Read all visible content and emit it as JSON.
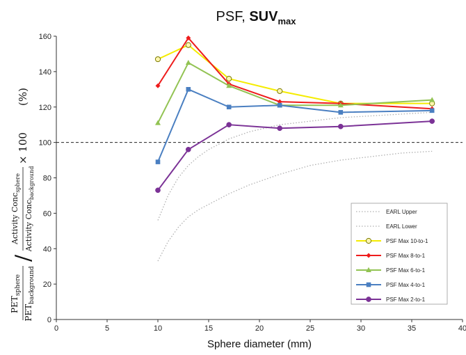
{
  "chart_data": {
    "type": "line",
    "title": "PSF, ",
    "title_bold": "SUV",
    "title_bold_sub": "max",
    "xlabel": "Sphere diameter (mm)",
    "ylabel": {
      "pet_num": "PET",
      "pet_num_sub": "sphere",
      "pet_den": "PET",
      "pet_den_sub": "background",
      "ac_num": "Activity Conc",
      "ac_num_sub": "sphere",
      "ac_den": "Activity Conc",
      "ac_den_sub": "background",
      "slash": "/",
      "times": "× 100",
      "unit": "(%)"
    },
    "xlim": [
      0,
      40
    ],
    "ylim": [
      0,
      160
    ],
    "xticks": [
      0,
      5,
      10,
      15,
      20,
      25,
      30,
      35,
      40
    ],
    "yticks": [
      0,
      20,
      40,
      60,
      80,
      100,
      120,
      140,
      160
    ],
    "reference_line": 100,
    "grid": false,
    "legend_position": "bottom-right",
    "series": [
      {
        "name": "EARL Upper",
        "style": "dotted",
        "color": "#b0b0b0",
        "x": [
          10,
          11,
          12,
          13,
          14,
          15,
          17,
          19,
          22,
          25,
          28,
          31,
          34,
          37
        ],
        "values": [
          56,
          70,
          80,
          87,
          92,
          96,
          102,
          106,
          110,
          112,
          114,
          115,
          116,
          117
        ]
      },
      {
        "name": "EARL Lower",
        "style": "dotted",
        "color": "#b0b0b0",
        "x": [
          10,
          11,
          12,
          13,
          14,
          15,
          17,
          19,
          22,
          25,
          28,
          31,
          34,
          37
        ],
        "values": [
          33,
          44,
          52,
          58,
          62,
          65,
          71,
          76,
          82,
          87,
          90,
          92,
          94,
          95
        ]
      },
      {
        "name": "PSF Max 10-to-1",
        "marker": "circle",
        "color": "#f5ec00",
        "marker_fill": "#fff6b0",
        "marker_stroke": "#7a7a00",
        "x": [
          10,
          13,
          17,
          22,
          28,
          37
        ],
        "values": [
          147,
          155,
          136,
          129,
          122,
          122
        ]
      },
      {
        "name": "PSF Max 8-to-1",
        "marker": "diamond",
        "color": "#ee1c1c",
        "x": [
          10,
          13,
          17,
          22,
          28,
          37
        ],
        "values": [
          132,
          159,
          133,
          123,
          122,
          119
        ]
      },
      {
        "name": "PSF Max 6-to-1",
        "marker": "triangle",
        "color": "#92c353",
        "x": [
          10,
          13,
          17,
          22,
          28,
          37
        ],
        "values": [
          111,
          145,
          132,
          121,
          121,
          124
        ]
      },
      {
        "name": "PSF Max 4-to-1",
        "marker": "square",
        "color": "#4a7fc1",
        "x": [
          10,
          13,
          17,
          22,
          28,
          37
        ],
        "values": [
          89,
          130,
          120,
          121,
          117,
          118
        ]
      },
      {
        "name": "PSF Max 2-to-1",
        "marker": "circle",
        "color": "#7b3296",
        "x": [
          10,
          13,
          17,
          22,
          28,
          37
        ],
        "values": [
          73,
          96,
          110,
          108,
          109,
          112
        ]
      }
    ]
  }
}
